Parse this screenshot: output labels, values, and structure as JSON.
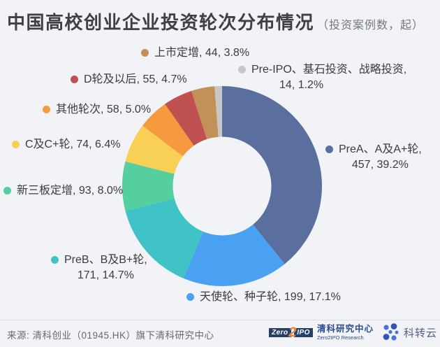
{
  "page": {
    "background": "#f1f3f6"
  },
  "title": {
    "main": "中国高校创业企业投资轮次分布情况",
    "unit": "（投资案例数，起）"
  },
  "chart_data": {
    "type": "pie",
    "donut": true,
    "start_angle_deg": 0,
    "direction": "clockwise",
    "title": "中国高校创业企业投资轮次分布情况",
    "unit_note": "投资案例数，起",
    "categories": [
      "PreA、A及A+轮",
      "天使轮、种子轮",
      "PreB、B及B+轮",
      "新三板定增",
      "C及C+轮",
      "其他轮次",
      "D轮及以后",
      "上市定增",
      "Pre-IPO、基石投资、战略投资"
    ],
    "values": [
      457,
      199,
      171,
      93,
      74,
      58,
      55,
      44,
      14
    ],
    "percent_labels": [
      "39.2%",
      "17.1%",
      "14.7%",
      "8.0%",
      "6.4%",
      "5.0%",
      "4.7%",
      "3.8%",
      "1.2%"
    ],
    "colors": [
      "#5b6f9e",
      "#4aa0f1",
      "#40c3c6",
      "#55cf9d",
      "#f8d055",
      "#f6993f",
      "#bf5150",
      "#c29157",
      "#c6c7c9"
    ],
    "legend": [
      {
        "id": "prea",
        "line1": "PreA、A及A+轮,",
        "line2": "457, 39.2%",
        "color": "#5b6f9e"
      },
      {
        "id": "tianshi",
        "line1": "天使轮、种子轮, 199, 17.1%",
        "line2": "",
        "color": "#4aa0f1"
      },
      {
        "id": "preb",
        "line1": "PreB、B及B+轮,",
        "line2": "171, 14.7%",
        "color": "#40c3c6"
      },
      {
        "id": "xinsanban",
        "line1": "新三板定增, 93, 8.0%",
        "line2": "",
        "color": "#55cf9d"
      },
      {
        "id": "c",
        "line1": "C及C+轮, 74, 6.4%",
        "line2": "",
        "color": "#f8d055"
      },
      {
        "id": "qita",
        "line1": "其他轮次, 58, 5.0%",
        "line2": "",
        "color": "#f6993f"
      },
      {
        "id": "d",
        "line1": "D轮及以后, 55, 4.7%",
        "line2": "",
        "color": "#bf5150"
      },
      {
        "id": "shangshi",
        "line1": "上市定增, 44, 3.8%",
        "line2": "",
        "color": "#c29157"
      },
      {
        "id": "preipo",
        "line1": "Pre-IPO、基石投资、战略投资,",
        "line2": "14, 1.2%",
        "color": "#c6c7c9"
      }
    ]
  },
  "footer": {
    "source": "来源: 清科创业（01945.HK）旗下清科研究中心",
    "logo_zero": "Zero",
    "logo_two": "2",
    "logo_ipo": "IPO",
    "logo_cn": "清科研究中心",
    "logo_en": "Zero2IPO Research",
    "kzy": "科转云"
  }
}
